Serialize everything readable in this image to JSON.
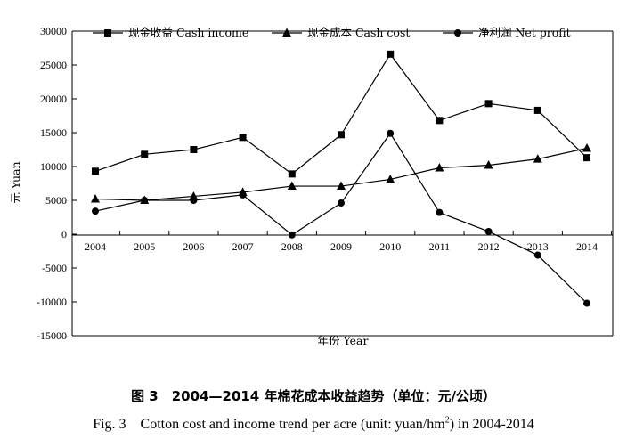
{
  "chart_data": {
    "type": "line",
    "x": [
      "2004",
      "2005",
      "2006",
      "2007",
      "2008",
      "2009",
      "2010",
      "2011",
      "2012",
      "2013",
      "2014"
    ],
    "series": [
      {
        "name": "现金收益 Cash income",
        "marker": "square",
        "values": [
          9300,
          11800,
          12500,
          14300,
          8900,
          14700,
          26600,
          16800,
          19300,
          18300,
          11300
        ]
      },
      {
        "name": "现金成本 Cash cost",
        "marker": "triangle",
        "values": [
          5200,
          5000,
          5600,
          6200,
          7100,
          7100,
          8100,
          9800,
          10200,
          11100,
          12700
        ]
      },
      {
        "name": "净利润 Net profit",
        "marker": "circle",
        "values": [
          3400,
          5000,
          5000,
          5800,
          -100,
          4600,
          14900,
          3200,
          400,
          -3100,
          -10200
        ]
      }
    ],
    "ylim": [
      -15000,
      30000
    ],
    "yticks": [
      "30000",
      "25000",
      "20000",
      "15000",
      "10000",
      "5000",
      "0",
      "-5000",
      "-10000",
      "-15000"
    ],
    "xlabel": "年份 Year",
    "ylabel": "元 Yuan",
    "legend_position": "top",
    "grid": false
  },
  "caption": {
    "cn": "图 3　2004—2014 年棉花成本收益趋势（单位：元/公顷）",
    "en_main": "Fig. 3　Cotton cost and income trend per acre (unit: yuan/hm",
    "en_sup": "2",
    "en_tail": ") in 2004-2014"
  }
}
